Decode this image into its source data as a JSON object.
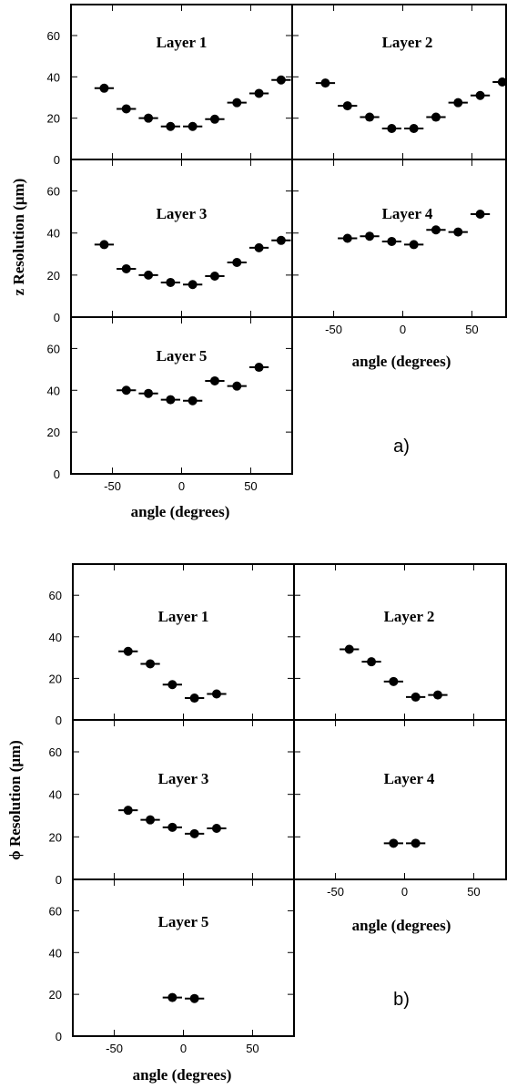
{
  "chart_data": [
    {
      "type": "scatter",
      "figure_tag": "a)",
      "ylabel": "z Resolution (μm)",
      "xlabel": "angle (degrees)",
      "xlim": [
        -80,
        80
      ],
      "ylim": [
        0,
        75
      ],
      "xticks": [
        -50,
        0,
        50
      ],
      "yticks": [
        0,
        20,
        40,
        60
      ],
      "panels": [
        {
          "title": "Layer 1",
          "x": [
            -56,
            -40,
            -24,
            -8,
            8,
            24,
            40,
            56,
            72
          ],
          "y": [
            34.5,
            24.5,
            20,
            16,
            16,
            19.5,
            27.5,
            32,
            38.5
          ],
          "xerr": 7
        },
        {
          "title": "Layer 2",
          "x": [
            -56,
            -40,
            -24,
            -8,
            8,
            24,
            40,
            56,
            72
          ],
          "y": [
            37,
            26,
            20.5,
            15,
            15,
            20.5,
            27.5,
            31,
            37.5
          ],
          "xerr": 7
        },
        {
          "title": "Layer 3",
          "x": [
            -56,
            -40,
            -24,
            -8,
            8,
            24,
            40,
            56,
            72
          ],
          "y": [
            34.5,
            23,
            20,
            16.5,
            15.5,
            19.5,
            26,
            33,
            36.5
          ],
          "xerr": 7
        },
        {
          "title": "Layer 4",
          "x": [
            -40,
            -24,
            -8,
            8,
            24,
            40,
            56
          ],
          "y": [
            37.5,
            38.5,
            36,
            34.5,
            41.5,
            40.5,
            49
          ],
          "xerr": 7
        },
        {
          "title": "Layer 5",
          "x": [
            -40,
            -24,
            -8,
            8,
            24,
            40,
            56
          ],
          "y": [
            40,
            38.5,
            35.5,
            35,
            44.5,
            42,
            51
          ],
          "xerr": 7
        }
      ]
    },
    {
      "type": "scatter",
      "figure_tag": "b)",
      "ylabel": "ϕ Resolution (μm)",
      "xlabel": "angle (degrees)",
      "xlim": [
        -80,
        80
      ],
      "ylim": [
        0,
        75
      ],
      "xticks": [
        -50,
        0,
        50
      ],
      "yticks": [
        0,
        20,
        40,
        60
      ],
      "panels": [
        {
          "title": "Layer 1",
          "x": [
            -40,
            -24,
            -8,
            8,
            24
          ],
          "y": [
            33,
            27,
            17,
            10.5,
            12.5
          ],
          "xerr": 7
        },
        {
          "title": "Layer 2",
          "x": [
            -40,
            -24,
            -8,
            8,
            24
          ],
          "y": [
            34,
            28,
            18.5,
            11,
            12
          ],
          "xerr": 7
        },
        {
          "title": "Layer 3",
          "x": [
            -40,
            -24,
            -8,
            8,
            24
          ],
          "y": [
            32.5,
            28,
            24.5,
            21.5,
            24
          ],
          "xerr": 7
        },
        {
          "title": "Layer 4",
          "x": [
            -8,
            8
          ],
          "y": [
            17,
            17
          ],
          "xerr": 7
        },
        {
          "title": "Layer 5",
          "x": [
            -8,
            8
          ],
          "y": [
            18.5,
            18
          ],
          "xerr": 7
        }
      ]
    }
  ]
}
